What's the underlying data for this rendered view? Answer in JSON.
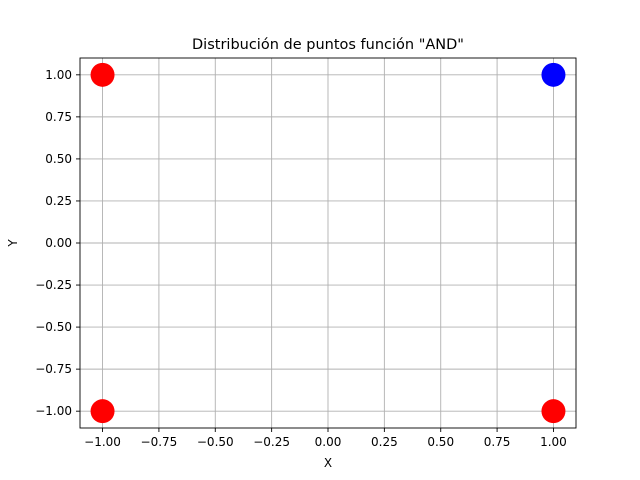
{
  "chart_data": {
    "type": "scatter",
    "title": "Distribución de puntos función \"AND\"",
    "xlabel": "X",
    "ylabel": "Y",
    "xlim": [
      -1.1,
      1.1
    ],
    "ylim": [
      -1.1,
      1.1
    ],
    "grid": true,
    "x_ticks": [
      -1.0,
      -0.75,
      -0.5,
      -0.25,
      0.0,
      0.25,
      0.5,
      0.75,
      1.0
    ],
    "y_ticks": [
      -1.0,
      -0.75,
      -0.5,
      -0.25,
      0.0,
      0.25,
      0.5,
      0.75,
      1.0
    ],
    "x_tick_labels": [
      "−1.00",
      "−0.75",
      "−0.50",
      "−0.25",
      "0.00",
      "0.25",
      "0.50",
      "0.75",
      "1.00"
    ],
    "y_tick_labels": [
      "−1.00",
      "−0.75",
      "−0.50",
      "−0.25",
      "0.00",
      "0.25",
      "0.50",
      "0.75",
      "1.00"
    ],
    "points": [
      {
        "x": -1,
        "y": 1,
        "color": "#ff0000"
      },
      {
        "x": 1,
        "y": 1,
        "color": "#0000ff"
      },
      {
        "x": -1,
        "y": -1,
        "color": "#ff0000"
      },
      {
        "x": 1,
        "y": -1,
        "color": "#ff0000"
      }
    ]
  }
}
